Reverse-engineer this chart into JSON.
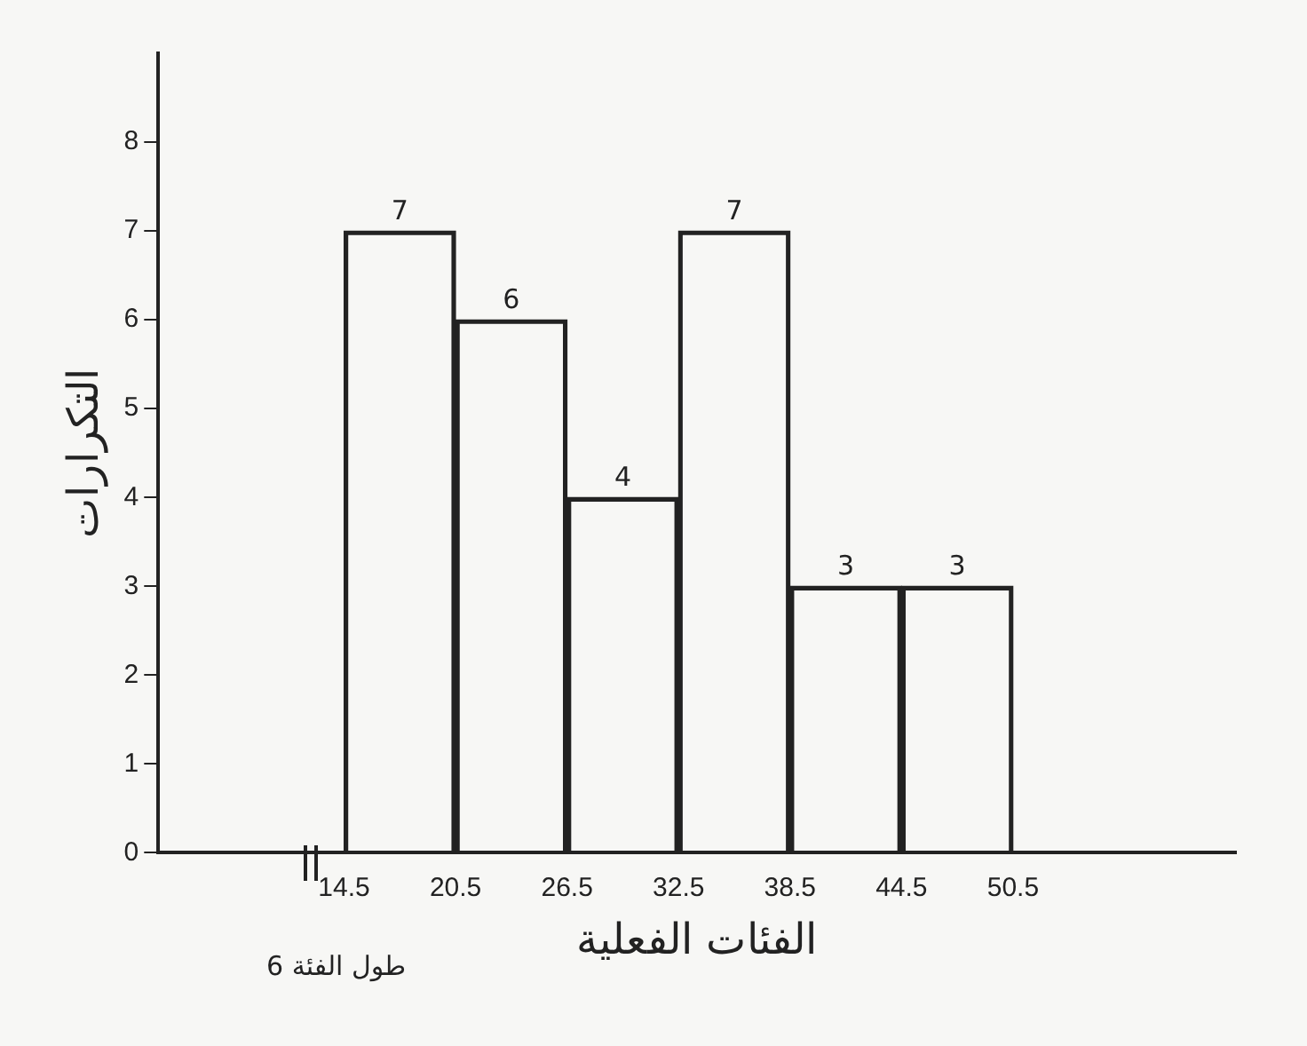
{
  "chart_data": {
    "type": "histogram",
    "bins": [
      14.5,
      20.5,
      26.5,
      32.5,
      38.5,
      44.5,
      50.5
    ],
    "values": [
      7,
      6,
      4,
      7,
      3,
      3
    ],
    "color": "#222222",
    "xlabel": "الفئات الفعلية",
    "ylabel": "التكرارات",
    "annotations": [
      "6 طول الفئة"
    ],
    "xlim": [
      4.5,
      62.5
    ],
    "xticks": [
      14.5,
      20.5,
      26.5,
      32.5,
      38.5,
      44.5,
      50.5
    ],
    "ylim": [
      0,
      9
    ],
    "yticks": [
      0,
      1,
      2,
      3,
      4,
      5,
      6,
      7,
      8
    ],
    "data_labels": true,
    "grid": false,
    "legend": false
  }
}
